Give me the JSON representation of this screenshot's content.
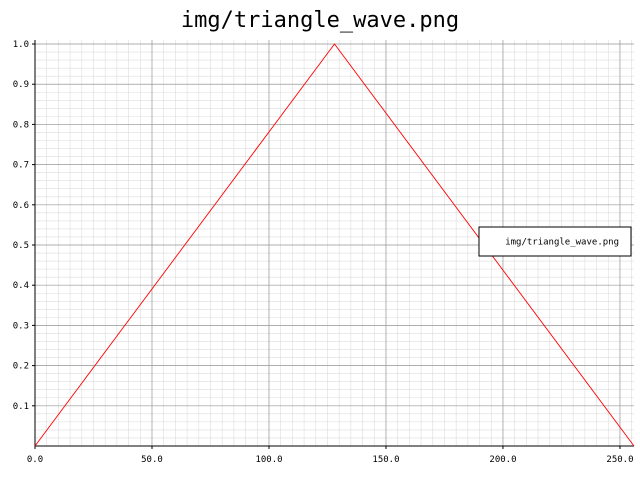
{
  "chart_data": {
    "type": "line",
    "title": "img/triangle_wave.png",
    "xlabel": "",
    "ylabel": "",
    "xlim": [
      0,
      256
    ],
    "ylim": [
      0,
      1.01
    ],
    "grid": true,
    "legend_position": "right",
    "x_ticks": [
      0,
      50,
      100,
      150,
      200,
      250
    ],
    "x_tick_labels": [
      "0.0",
      "50.0",
      "100.0",
      "150.0",
      "200.0",
      "250.0"
    ],
    "y_ticks": [
      0.1,
      0.2,
      0.3,
      0.4,
      0.5,
      0.6,
      0.7,
      0.8,
      0.9,
      1.0
    ],
    "y_tick_labels": [
      "0.1",
      "0.2",
      "0.3",
      "0.4",
      "0.5",
      "0.6",
      "0.7",
      "0.8",
      "0.9",
      "1.0"
    ],
    "series": [
      {
        "name": "img/triangle_wave.png",
        "color": "#ff0000",
        "x": [
          0,
          128,
          256
        ],
        "y": [
          0.0,
          1.0,
          0.0
        ]
      }
    ]
  }
}
